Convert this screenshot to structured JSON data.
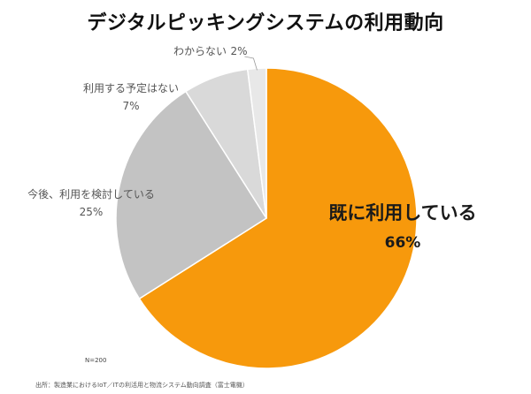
{
  "title": "デジタルピッキングシステムの利用動向",
  "sample_size": "N=200",
  "source": "出所：製造業におけるIoT／ITの利活用と物流システム動向調査（富士電機）",
  "colors": {
    "using": "#F7990C",
    "considering": "#C3C3C3",
    "no_plan": "#D9D9D9",
    "unknown": "#E8E8E8",
    "separator": "#ffffff",
    "leader": "#9a9a9a"
  },
  "chart_data": {
    "type": "pie",
    "title": "デジタルピッキングシステムの利用動向",
    "slices": [
      {
        "label": "既に利用している",
        "value": 66,
        "value_label": "66%",
        "color": "#F7990C"
      },
      {
        "label": "今後、利用を検討している",
        "value": 25,
        "value_label": "25%",
        "color": "#C3C3C3"
      },
      {
        "label": "利用する予定はない",
        "value": 7,
        "value_label": "7%",
        "color": "#D9D9D9"
      },
      {
        "label": "わからない",
        "value": 2,
        "value_label": "2%",
        "color": "#E8E8E8"
      }
    ],
    "start_angle_deg": 0,
    "direction": "clockwise",
    "legend": "none"
  }
}
